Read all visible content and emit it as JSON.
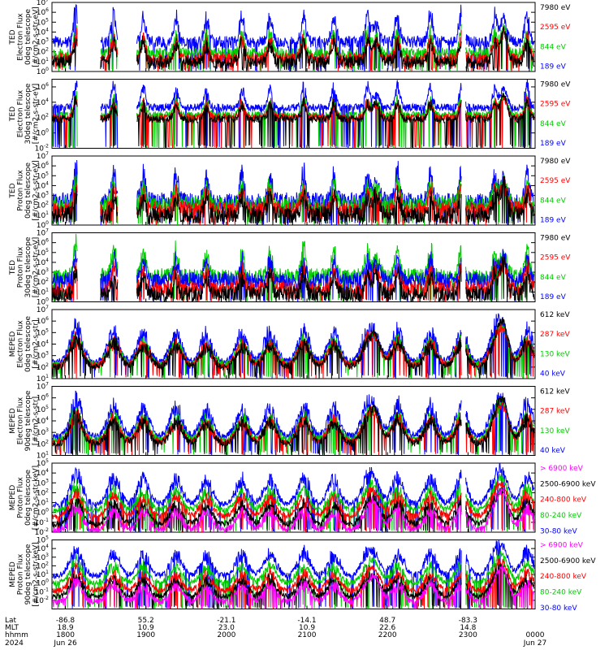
{
  "chart_data": {
    "type": "line",
    "panels": [
      {
        "id": "ted-electron-0deg",
        "ylabel_lines": [
          "TED",
          "Electron Flux",
          "0deg telescope",
          "[#/cm2-s-str-eV]"
        ],
        "ylim_exp": [
          0,
          7
        ],
        "ticks_exp": [
          0,
          1,
          2,
          3,
          4,
          5,
          6,
          7
        ],
        "series": [
          {
            "name": "7980 eV",
            "color": "#000000"
          },
          {
            "name": "2595 eV",
            "color": "#ff0000"
          },
          {
            "name": "844 eV",
            "color": "#00cc00"
          },
          {
            "name": "189 eV",
            "color": "#0000ff"
          }
        ],
        "levels": [
          1.0,
          1.3,
          1.8,
          3.0
        ],
        "noise": 0.6
      },
      {
        "id": "ted-electron-30deg",
        "ylabel_lines": [
          "TED",
          "Electron Flux",
          "30deg telescope",
          "[#/cm2-s-str-eV]"
        ],
        "ylim_exp": [
          -2,
          7
        ],
        "ticks_exp": [
          -2,
          0,
          2,
          4,
          6
        ],
        "series": [
          {
            "name": "7980 eV",
            "color": "#000000"
          },
          {
            "name": "2595 eV",
            "color": "#ff0000"
          },
          {
            "name": "844 eV",
            "color": "#00cc00"
          },
          {
            "name": "189 eV",
            "color": "#0000ff"
          }
        ],
        "levels": [
          1.8,
          2.0,
          2.3,
          3.3
        ],
        "noise": 0.5
      },
      {
        "id": "ted-proton-0deg",
        "ylabel_lines": [
          "TED",
          "Proton Flux",
          "0deg telescope",
          "[#/cm2-s-str-eV]"
        ],
        "ylim_exp": [
          0,
          7
        ],
        "ticks_exp": [
          0,
          1,
          2,
          3,
          4,
          5,
          6,
          7
        ],
        "series": [
          {
            "name": "7980 eV",
            "color": "#000000"
          },
          {
            "name": "2595 eV",
            "color": "#ff0000"
          },
          {
            "name": "844 eV",
            "color": "#00cc00"
          },
          {
            "name": "189 eV",
            "color": "#0000ff"
          }
        ],
        "levels": [
          1.0,
          1.5,
          2.0,
          2.4
        ],
        "noise": 0.9
      },
      {
        "id": "ted-proton-30deg",
        "ylabel_lines": [
          "TED",
          "Proton Flux",
          "30deg telescope",
          "[#/cm2-s-str-eV]"
        ],
        "ylim_exp": [
          0,
          7
        ],
        "ticks_exp": [
          0,
          1,
          2,
          3,
          4,
          5,
          6,
          7
        ],
        "series": [
          {
            "name": "7980 eV",
            "color": "#000000"
          },
          {
            "name": "2595 eV",
            "color": "#ff0000"
          },
          {
            "name": "844 eV",
            "color": "#00cc00"
          },
          {
            "name": "189 eV",
            "color": "#0000ff"
          }
        ],
        "levels": [
          0.8,
          1.3,
          2.6,
          2.2
        ],
        "noise": 0.8
      },
      {
        "id": "meped-electron-0deg",
        "ylabel_lines": [
          "MEPED",
          "Electron Flux",
          "0deg telescope",
          "[#/cm2-s-str]"
        ],
        "ylim_exp": [
          1,
          7
        ],
        "ticks_exp": [
          1,
          2,
          3,
          4,
          5,
          6,
          7
        ],
        "series": [
          {
            "name": "612 keV",
            "color": "#000000"
          },
          {
            "name": "287 keV",
            "color": "#ff0000"
          },
          {
            "name": "130 keV",
            "color": "#00cc00"
          },
          {
            "name": "40 keV",
            "color": "#0000ff"
          }
        ],
        "levels": [
          2.0,
          2.1,
          2.2,
          2.4
        ],
        "noise": 0.3
      },
      {
        "id": "meped-electron-90deg",
        "ylabel_lines": [
          "MEPED",
          "Electron Flux",
          "90deg telescope",
          "[#/cm2-s-str]"
        ],
        "ylim_exp": [
          1,
          7
        ],
        "ticks_exp": [
          1,
          2,
          3,
          4,
          5,
          6,
          7
        ],
        "series": [
          {
            "name": "612 keV",
            "color": "#000000"
          },
          {
            "name": "287 keV",
            "color": "#ff0000"
          },
          {
            "name": "130 keV",
            "color": "#00cc00"
          },
          {
            "name": "40 keV",
            "color": "#0000ff"
          }
        ],
        "levels": [
          2.0,
          2.1,
          2.3,
          2.6
        ],
        "noise": 0.3
      },
      {
        "id": "meped-proton-0deg",
        "ylabel_lines": [
          "MEPED",
          "Proton Flux",
          "0deg telescope",
          "[#/cm2-s-str-keV]"
        ],
        "ylim_exp": [
          -2,
          5
        ],
        "ticks_exp": [
          -2,
          -1,
          0,
          1,
          2,
          3,
          4,
          5
        ],
        "series": [
          {
            "name": "> 6900 keV",
            "color": "#ff00ff"
          },
          {
            "name": "2500-6900 keV",
            "color": "#000000"
          },
          {
            "name": "240-800 keV",
            "color": "#ff0000"
          },
          {
            "name": "80-240 keV",
            "color": "#00cc00"
          },
          {
            "name": "30-80 keV",
            "color": "#0000ff"
          }
        ],
        "levels": [
          -1.8,
          -1.2,
          -0.4,
          0.2,
          0.8
        ],
        "noise": 0.3
      },
      {
        "id": "meped-proton-90deg",
        "ylabel_lines": [
          "MEPED",
          "Proton Flux",
          "90deg telescope",
          "[#/cm2-s-str-keV]"
        ],
        "ylim_exp": [
          -3,
          5
        ],
        "ticks_exp": [
          -2,
          -1,
          0,
          1,
          2,
          3,
          4,
          5
        ],
        "series": [
          {
            "name": "> 6900 keV",
            "color": "#ff00ff"
          },
          {
            "name": "2500-6900 keV",
            "color": "#000000"
          },
          {
            "name": "240-800 keV",
            "color": "#ff0000"
          },
          {
            "name": "80-240 keV",
            "color": "#00cc00"
          },
          {
            "name": "30-80 keV",
            "color": "#0000ff"
          }
        ],
        "levels": [
          -2.2,
          -1.6,
          -0.9,
          0.0,
          0.8
        ],
        "noise": 0.35
      }
    ],
    "x_axis": {
      "row_labels": [
        "Lat",
        "MLT",
        "hhmm",
        "2024"
      ],
      "x_range_minutes": [
        1720,
        2440
      ],
      "ticks": [
        {
          "minute": 1740,
          "lat": "-86.8",
          "mlt": "18.9",
          "hhmm": "1800",
          "date": "Jun 26"
        },
        {
          "minute": 1860,
          "lat": "55.2",
          "mlt": "10.9",
          "hhmm": "1900",
          "date": ""
        },
        {
          "minute": 1980,
          "lat": "-21.1",
          "mlt": "23.0",
          "hhmm": "2000",
          "date": ""
        },
        {
          "minute": 2100,
          "lat": "-14.1",
          "mlt": "10.9",
          "hhmm": "2100",
          "date": ""
        },
        {
          "minute": 2220,
          "lat": "48.7",
          "mlt": "22.6",
          "hhmm": "2200",
          "date": ""
        },
        {
          "minute": 2340,
          "lat": "-83.3",
          "mlt": "14.8",
          "hhmm": "2300",
          "date": ""
        },
        {
          "minute": 2460,
          "lat": "",
          "mlt": "",
          "hhmm": "0000",
          "date": "Jun 27"
        }
      ]
    },
    "events": [
      {
        "minute": 1756,
        "strength": 2.6
      },
      {
        "minute": 1812,
        "strength": 2.2
      },
      {
        "minute": 1856,
        "strength": 2.0
      },
      {
        "minute": 1905,
        "strength": 2.0
      },
      {
        "minute": 1950,
        "strength": 1.9
      },
      {
        "minute": 2003,
        "strength": 2.0
      },
      {
        "minute": 2045,
        "strength": 2.1
      },
      {
        "minute": 2095,
        "strength": 2.2
      },
      {
        "minute": 2140,
        "strength": 2.0
      },
      {
        "minute": 2190,
        "strength": 2.0
      },
      {
        "minute": 2235,
        "strength": 2.2
      },
      {
        "minute": 2284,
        "strength": 2.1
      },
      {
        "minute": 2330,
        "strength": 2.2
      },
      {
        "minute": 2380,
        "strength": 2.0
      },
      {
        "minute": 2428,
        "strength": 2.3
      }
    ],
    "storm_events": [
      {
        "minute": 2203,
        "strength": 2.4
      },
      {
        "minute": 2393,
        "strength": 3.6
      }
    ]
  }
}
